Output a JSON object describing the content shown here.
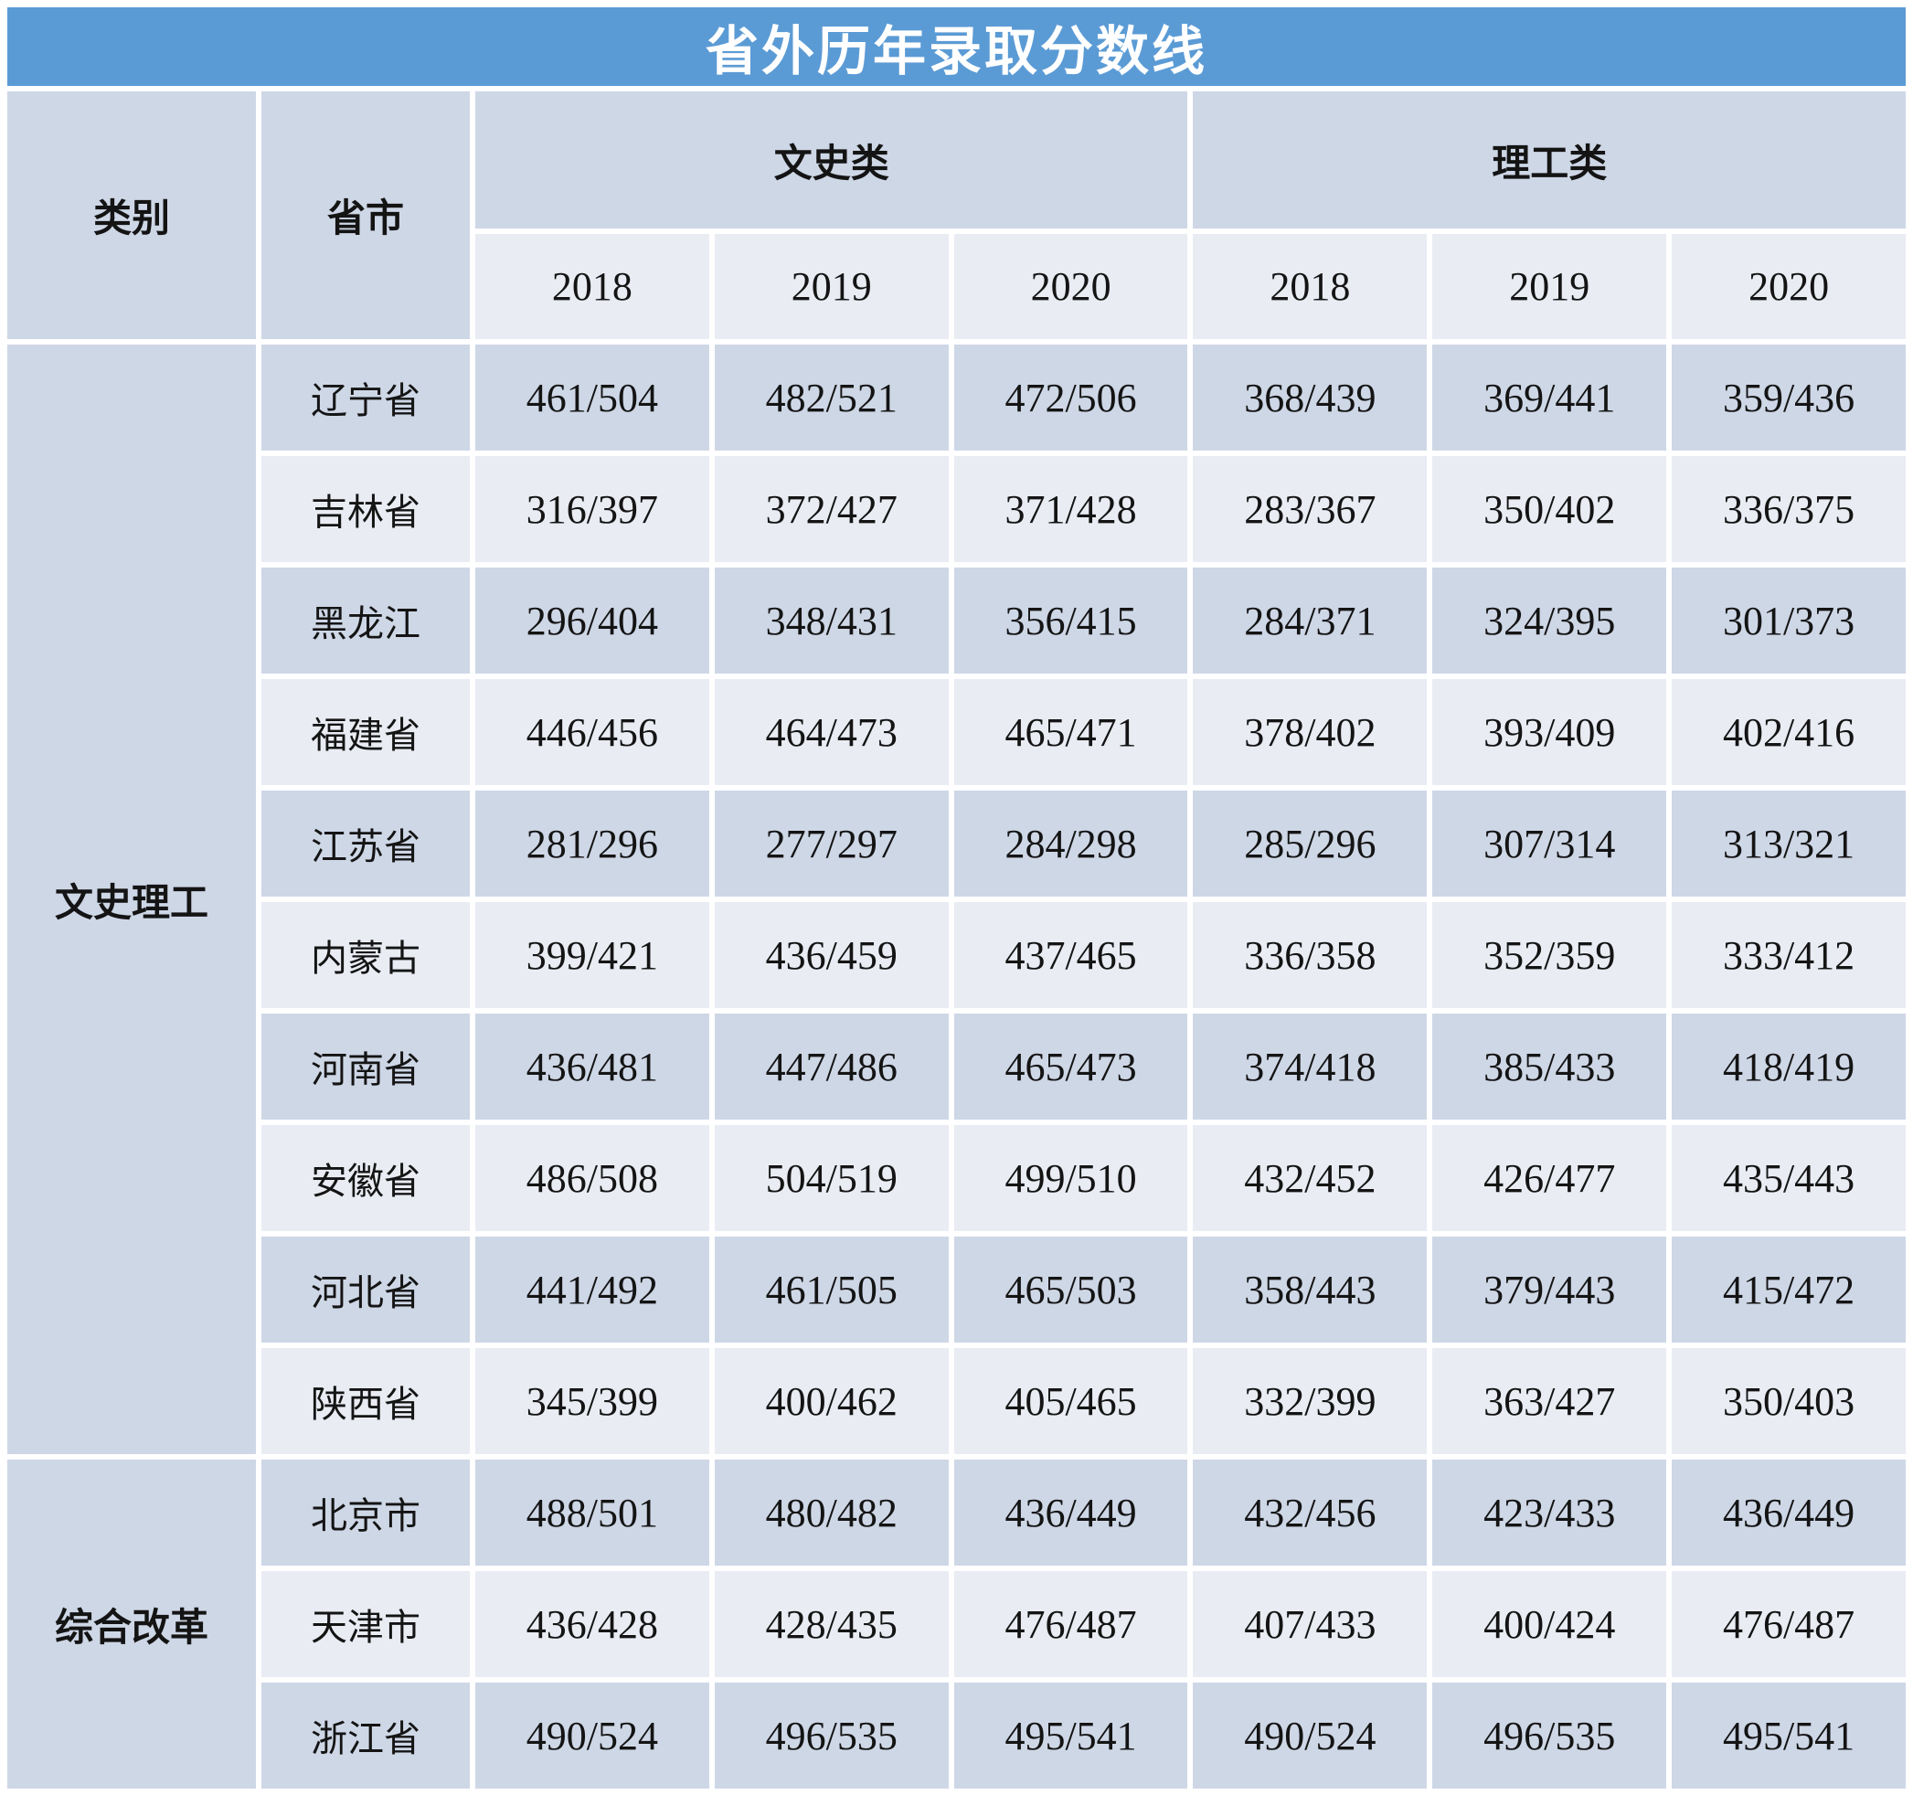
{
  "title": "省外历年录取分数线",
  "colors": {
    "title_bg": "#5B9BD5",
    "title_text": "#FFFFFF",
    "band_dark": "#CED7E6",
    "band_light": "#E9ECF3",
    "text": "#141414",
    "background": "#FFFFFF"
  },
  "header": {
    "category": "类别",
    "province": "省市",
    "group1": "文史类",
    "group2": "理工类",
    "years": [
      "2018",
      "2019",
      "2020"
    ]
  },
  "groups": [
    {
      "category": "文史理工",
      "rows": [
        {
          "province": "辽宁省",
          "values": [
            "461/504",
            "482/521",
            "472/506",
            "368/439",
            "369/441",
            "359/436"
          ]
        },
        {
          "province": "吉林省",
          "values": [
            "316/397",
            "372/427",
            "371/428",
            "283/367",
            "350/402",
            "336/375"
          ]
        },
        {
          "province": "黑龙江",
          "values": [
            "296/404",
            "348/431",
            "356/415",
            "284/371",
            "324/395",
            "301/373"
          ]
        },
        {
          "province": "福建省",
          "values": [
            "446/456",
            "464/473",
            "465/471",
            "378/402",
            "393/409",
            "402/416"
          ]
        },
        {
          "province": "江苏省",
          "values": [
            "281/296",
            "277/297",
            "284/298",
            "285/296",
            "307/314",
            "313/321"
          ]
        },
        {
          "province": "内蒙古",
          "values": [
            "399/421",
            "436/459",
            "437/465",
            "336/358",
            "352/359",
            "333/412"
          ]
        },
        {
          "province": "河南省",
          "values": [
            "436/481",
            "447/486",
            "465/473",
            "374/418",
            "385/433",
            "418/419"
          ]
        },
        {
          "province": "安徽省",
          "values": [
            "486/508",
            "504/519",
            "499/510",
            "432/452",
            "426/477",
            "435/443"
          ]
        },
        {
          "province": "河北省",
          "values": [
            "441/492",
            "461/505",
            "465/503",
            "358/443",
            "379/443",
            "415/472"
          ]
        },
        {
          "province": "陕西省",
          "values": [
            "345/399",
            "400/462",
            "405/465",
            "332/399",
            "363/427",
            "350/403"
          ]
        }
      ]
    },
    {
      "category": "综合改革",
      "rows": [
        {
          "province": "北京市",
          "values": [
            "488/501",
            "480/482",
            "436/449",
            "432/456",
            "423/433",
            "436/449"
          ]
        },
        {
          "province": "天津市",
          "values": [
            "436/428",
            "428/435",
            "476/487",
            "407/433",
            "400/424",
            "476/487"
          ]
        },
        {
          "province": "浙江省",
          "values": [
            "490/524",
            "496/535",
            "495/541",
            "490/524",
            "496/535",
            "495/541"
          ]
        }
      ]
    }
  ],
  "chart_data": {
    "type": "table",
    "title": "省外历年录取分数线",
    "columns": [
      "类别",
      "省市",
      "文史类 2018",
      "文史类 2019",
      "文史类 2020",
      "理工类 2018",
      "理工类 2019",
      "理工类 2020"
    ],
    "rows": [
      [
        "文史理工",
        "辽宁省",
        "461/504",
        "482/521",
        "472/506",
        "368/439",
        "369/441",
        "359/436"
      ],
      [
        "文史理工",
        "吉林省",
        "316/397",
        "372/427",
        "371/428",
        "283/367",
        "350/402",
        "336/375"
      ],
      [
        "文史理工",
        "黑龙江",
        "296/404",
        "348/431",
        "356/415",
        "284/371",
        "324/395",
        "301/373"
      ],
      [
        "文史理工",
        "福建省",
        "446/456",
        "464/473",
        "465/471",
        "378/402",
        "393/409",
        "402/416"
      ],
      [
        "文史理工",
        "江苏省",
        "281/296",
        "277/297",
        "284/298",
        "285/296",
        "307/314",
        "313/321"
      ],
      [
        "文史理工",
        "内蒙古",
        "399/421",
        "436/459",
        "437/465",
        "336/358",
        "352/359",
        "333/412"
      ],
      [
        "文史理工",
        "河南省",
        "436/481",
        "447/486",
        "465/473",
        "374/418",
        "385/433",
        "418/419"
      ],
      [
        "文史理工",
        "安徽省",
        "486/508",
        "504/519",
        "499/510",
        "432/452",
        "426/477",
        "435/443"
      ],
      [
        "文史理工",
        "河北省",
        "441/492",
        "461/505",
        "465/503",
        "358/443",
        "379/443",
        "415/472"
      ],
      [
        "文史理工",
        "陕西省",
        "345/399",
        "400/462",
        "405/465",
        "332/399",
        "363/427",
        "350/403"
      ],
      [
        "综合改革",
        "北京市",
        "488/501",
        "480/482",
        "436/449",
        "432/456",
        "423/433",
        "436/449"
      ],
      [
        "综合改革",
        "天津市",
        "436/428",
        "428/435",
        "476/487",
        "407/433",
        "400/424",
        "476/487"
      ],
      [
        "综合改革",
        "浙江省",
        "490/524",
        "496/535",
        "495/541",
        "490/524",
        "496/535",
        "495/541"
      ]
    ],
    "layout": {
      "banded_rows": true,
      "header_groups_span": 3,
      "category_rowspans": [
        10,
        3
      ]
    }
  }
}
